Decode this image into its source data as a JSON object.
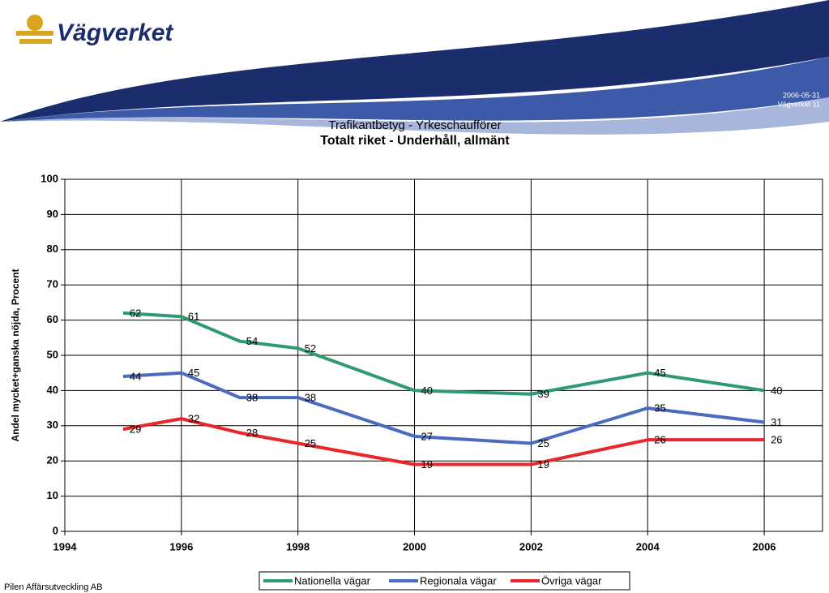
{
  "header": {
    "brand": "Vägverket",
    "date": "2006-05-31",
    "page": "Vägverket 11"
  },
  "footer": "Pilen Affärsutveckling AB",
  "chart_data": {
    "type": "line",
    "title": "Trafikantbetyg - Yrkeschaufförer",
    "subtitle": "Totalt riket - Underhåll, allmänt",
    "y_label": "Andel mycket+ganska nöjda, Procent",
    "x": [
      1995,
      1996,
      1997,
      1998,
      2000,
      2002,
      2004,
      2006
    ],
    "series": [
      {
        "name": "Nationella vägar",
        "color": "#2e9b6e",
        "values": [
          62,
          61,
          54,
          52,
          40,
          39,
          45,
          40
        ]
      },
      {
        "name": "Regionala vägar",
        "color": "#4a6bc0",
        "values": [
          44,
          45,
          38,
          38,
          27,
          25,
          35,
          31
        ]
      },
      {
        "name": "Övriga vägar",
        "color": "#e8262b",
        "values": [
          29,
          32,
          28,
          25,
          19,
          19,
          26,
          26
        ]
      }
    ],
    "xlim": [
      1994,
      2007
    ],
    "xticks": [
      1994,
      1996,
      1998,
      2000,
      2002,
      2004,
      2006
    ],
    "ylim": [
      0,
      100
    ],
    "yticks": [
      0,
      10,
      20,
      30,
      40,
      50,
      60,
      70,
      80,
      90,
      100
    ],
    "grid": true,
    "legend": "bottom"
  }
}
